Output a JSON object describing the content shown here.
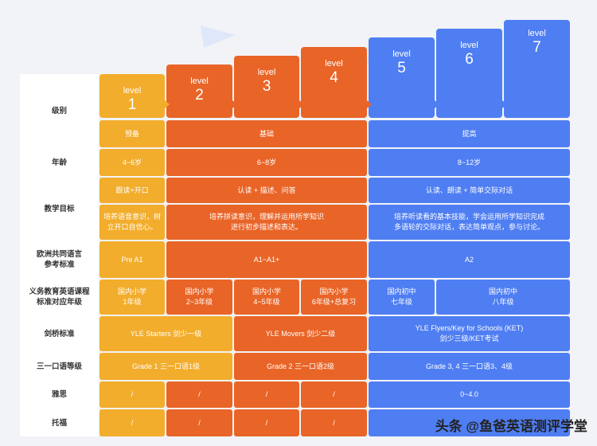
{
  "levels": [
    {
      "word": "level",
      "num": "1"
    },
    {
      "word": "level",
      "num": "2"
    },
    {
      "word": "level",
      "num": "3"
    },
    {
      "word": "level",
      "num": "4"
    },
    {
      "word": "level",
      "num": "5"
    },
    {
      "word": "level",
      "num": "6"
    },
    {
      "word": "level",
      "num": "7"
    }
  ],
  "row_labels": {
    "level": "级别",
    "age": "年龄",
    "goal": "教学目标",
    "cefr": "欧洲共同语言\n参考标准",
    "curriculum": "义务教育英语课程\n标准对应年级",
    "cambridge": "剑桥标准",
    "trinity": "三一口语等级",
    "ielts": "雅思",
    "toefl": "托福"
  },
  "stage": {
    "prep": "预备",
    "basic": "基础",
    "advanced": "提高"
  },
  "age": {
    "g1": "4~6岁",
    "g2": "6~8岁",
    "g3": "8~12岁"
  },
  "goal_short": {
    "g1": "跟读+开口",
    "g2": "认读 + 描述、问答",
    "g3": "认读、朗读 + 简单交际对话"
  },
  "goal_long": {
    "g1": "培养语音意识，树\n立开口自信心。",
    "g2": "培养拼读意识，理解并运用所学知识\n进行初步描述和表达。",
    "g3": "培养听读看的基本技能，学会运用所学知识完成\n多语轮的交际对话，表达简单观点，参与讨论。"
  },
  "cefr": {
    "g1": "Pre A1",
    "g2": "A1~A1+",
    "g3": "A2"
  },
  "curriculum": {
    "l1": "国内小学\n1年级",
    "l2": "国内小学\n2~3年级",
    "l3": "国内小学\n4~5年级",
    "l4": "国内小学\n6年级+总复习",
    "l5": "国内初中\n七年级",
    "l67": "国内初中\n八年级"
  },
  "cambridge": {
    "c1": "YLE Starters 剑少一级",
    "c2": "YLE Movers 剑少二级",
    "c3": "YLE Flyers/Key for Schools (KET)\n剑少三级/KET考试"
  },
  "trinity": {
    "t1": "Grade 1 三一口语1级",
    "t2": "Grade 2 三一口语2级",
    "t3": "Grade 3, 4 三一口语3、4级"
  },
  "ielts": {
    "l1": "/",
    "l2": "/",
    "l3": "/",
    "l4": "/",
    "high": "0~4.0"
  },
  "toefl": {
    "l1": "/",
    "l2": "/",
    "l3": "/",
    "l4": "/",
    "high": ""
  },
  "watermark": "头条 @鱼爸英语测评学堂",
  "colors": {
    "yellow": "#f2ad2c",
    "orange": "#e96427",
    "blue": "#4f7ef2"
  }
}
